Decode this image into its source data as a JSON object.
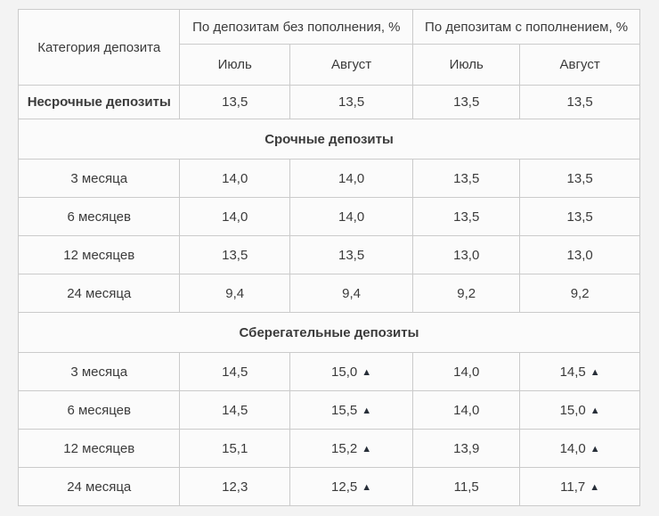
{
  "chart_data": {
    "type": "table",
    "category_header": "Категория депозита",
    "group_headers": [
      "По депозитам без пополнения, %",
      "По депозитам с пополнением, %"
    ],
    "month_headers": [
      "Июль",
      "Август",
      "Июль",
      "Август"
    ],
    "rows": [
      {
        "type": "data",
        "label": "Несрочные депозиты",
        "bold": true,
        "values": [
          "13,5",
          "13,5",
          "13,5",
          "13,5"
        ],
        "increase": [
          false,
          false,
          false,
          false
        ]
      },
      {
        "type": "section",
        "label": "Срочные депозиты"
      },
      {
        "type": "data",
        "label": "3 месяца",
        "bold": false,
        "values": [
          "14,0",
          "14,0",
          "13,5",
          "13,5"
        ],
        "increase": [
          false,
          false,
          false,
          false
        ]
      },
      {
        "type": "data",
        "label": "6 месяцев",
        "bold": false,
        "values": [
          "14,0",
          "14,0",
          "13,5",
          "13,5"
        ],
        "increase": [
          false,
          false,
          false,
          false
        ]
      },
      {
        "type": "data",
        "label": "12 месяцев",
        "bold": false,
        "values": [
          "13,5",
          "13,5",
          "13,0",
          "13,0"
        ],
        "increase": [
          false,
          false,
          false,
          false
        ]
      },
      {
        "type": "data",
        "label": "24 месяца",
        "bold": false,
        "values": [
          "9,4",
          "9,4",
          "9,2",
          "9,2"
        ],
        "increase": [
          false,
          false,
          false,
          false
        ]
      },
      {
        "type": "section",
        "label": "Сберегательные депозиты"
      },
      {
        "type": "data",
        "label": "3 месяца",
        "bold": false,
        "values": [
          "14,5",
          "15,0",
          "14,0",
          "14,5"
        ],
        "increase": [
          false,
          true,
          false,
          true
        ]
      },
      {
        "type": "data",
        "label": "6 месяцев",
        "bold": false,
        "values": [
          "14,5",
          "15,5",
          "14,0",
          "15,0"
        ],
        "increase": [
          false,
          true,
          false,
          true
        ]
      },
      {
        "type": "data",
        "label": "12 месяцев",
        "bold": false,
        "values": [
          "15,1",
          "15,2",
          "13,9",
          "14,0"
        ],
        "increase": [
          false,
          true,
          false,
          true
        ]
      },
      {
        "type": "data",
        "label": "24 месяца",
        "bold": false,
        "values": [
          "12,3",
          "12,5",
          "11,5",
          "11,7"
        ],
        "increase": [
          false,
          true,
          false,
          true
        ]
      }
    ]
  },
  "icons": {
    "up_triangle": "▲"
  },
  "colors": {
    "text": "#3b3b3b",
    "border": "#cbcbcb",
    "cell_bg": "#fbfbfb",
    "page_bg": "#f3f3f3",
    "triangle": "#272e38"
  }
}
